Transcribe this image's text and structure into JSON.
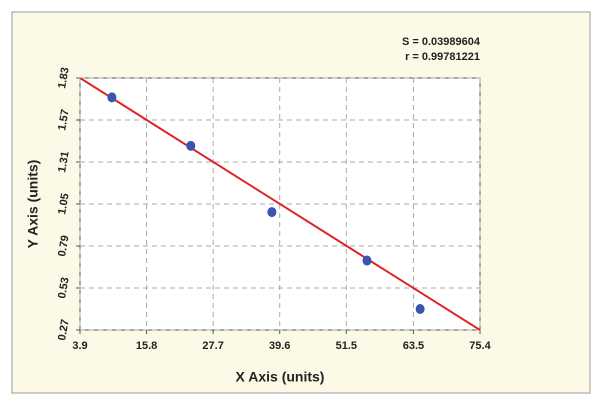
{
  "chart_data": {
    "type": "scatter",
    "annotations": [
      "S = 0.03989604",
      "r = 0.99781221"
    ],
    "x_label": "X Axis (units)",
    "y_label": "Y Axis (units)",
    "x": [
      9.6,
      23.7,
      38.2,
      55.2,
      64.7
    ],
    "values": [
      1.71,
      1.41,
      1.0,
      0.7,
      0.4
    ],
    "color": "#3a55b0",
    "fit_line": {
      "x": [
        3.9,
        75.4
      ],
      "y": [
        1.83,
        0.27
      ],
      "color": "#e02020"
    },
    "xlim": [
      3.9,
      75.4
    ],
    "ylim": [
      0.27,
      1.83
    ],
    "xticks": [
      3.9,
      15.8,
      27.7,
      39.6,
      51.5,
      63.5,
      75.4
    ],
    "yticks": [
      0.27,
      0.53,
      0.79,
      1.05,
      1.31,
      1.57,
      1.83
    ],
    "grid": true
  }
}
